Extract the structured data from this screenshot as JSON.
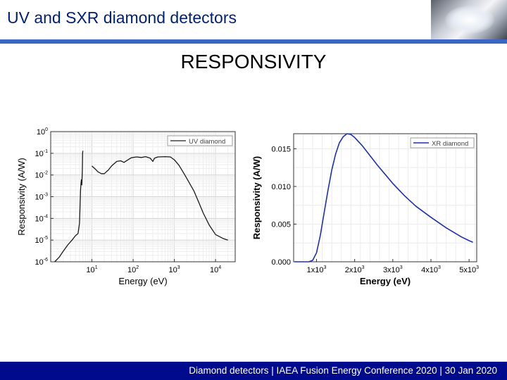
{
  "header": {
    "title": "UV and SXR diamond detectors"
  },
  "subtitle": "RESPONSIVITY",
  "footer": {
    "text": "Diamond detectors | IAEA Fusion Energy Conference 2020 | 30 Jan 2020"
  },
  "colors": {
    "title": "#001f7a",
    "title_bar": "#3a66c4",
    "footer_bar": "#000a8c",
    "uv_line": "#1a1a1a",
    "xr_line": "#1f2fb0"
  },
  "chart_data": [
    {
      "type": "line",
      "xscale": "log",
      "yscale": "log",
      "xlabel": "Energy (eV)",
      "ylabel": "Responsivity (A/W)",
      "xlim": [
        1,
        30000
      ],
      "ylim": [
        1e-06,
        1
      ],
      "xticks": [
        {
          "v": 10,
          "label": "10",
          "exp": "1"
        },
        {
          "v": 100,
          "label": "10",
          "exp": "2"
        },
        {
          "v": 1000,
          "label": "10",
          "exp": "3"
        },
        {
          "v": 10000,
          "label": "10",
          "exp": "4"
        }
      ],
      "yticks": [
        {
          "v": 1,
          "label": "10",
          "exp": "0"
        },
        {
          "v": 0.1,
          "label": "10",
          "exp": "-1"
        },
        {
          "v": 0.01,
          "label": "10",
          "exp": "-2"
        },
        {
          "v": 0.001,
          "label": "10",
          "exp": "-3"
        },
        {
          "v": 0.0001,
          "label": "10",
          "exp": "-4"
        },
        {
          "v": 1e-05,
          "label": "10",
          "exp": "-5"
        },
        {
          "v": 1e-06,
          "label": "10",
          "exp": "-6"
        }
      ],
      "grid": true,
      "legend_position": "top-right",
      "series": [
        {
          "name": "UV diamond",
          "segments": [
            [
              [
                1.25,
                1e-06
              ],
              [
                1.6,
                1.6e-06
              ],
              [
                2.0,
                3e-06
              ],
              [
                2.6,
                6e-06
              ],
              [
                3.3,
                1e-05
              ],
              [
                4.0,
                1.6e-05
              ],
              [
                4.6,
                2e-05
              ],
              [
                5.0,
                6e-05
              ],
              [
                5.3,
                0.002
              ],
              [
                5.45,
                0.0045
              ],
              [
                5.55,
                0.006
              ],
              [
                5.7,
                0.0035
              ],
              [
                5.85,
                0.015
              ],
              [
                5.95,
                0.1
              ],
              [
                6.05,
                0.13
              ]
            ],
            [
              [
                10,
                0.026
              ],
              [
                12,
                0.019
              ],
              [
                14,
                0.014
              ],
              [
                17,
                0.0115
              ],
              [
                20,
                0.0115
              ],
              [
                25,
                0.017
              ],
              [
                30,
                0.026
              ],
              [
                40,
                0.042
              ],
              [
                50,
                0.045
              ],
              [
                60,
                0.038
              ],
              [
                70,
                0.046
              ],
              [
                90,
                0.062
              ],
              [
                120,
                0.068
              ],
              [
                160,
                0.064
              ],
              [
                200,
                0.07
              ],
              [
                260,
                0.06
              ],
              [
                300,
                0.042
              ],
              [
                330,
                0.06
              ],
              [
                400,
                0.068
              ],
              [
                600,
                0.07
              ],
              [
                800,
                0.068
              ],
              [
                1000,
                0.05
              ],
              [
                1300,
                0.028
              ],
              [
                1700,
                0.012
              ],
              [
                2000,
                0.007
              ],
              [
                3000,
                0.0018
              ],
              [
                4000,
                0.0005
              ],
              [
                5000,
                0.00018
              ],
              [
                7000,
                5e-05
              ],
              [
                10000,
                1.8e-05
              ],
              [
                15000,
                1.2e-05
              ],
              [
                20000,
                1e-05
              ]
            ]
          ]
        }
      ]
    },
    {
      "type": "line",
      "xlabel": "Energy (eV)",
      "ylabel": "Responsivity (A/W)",
      "xlim": [
        400,
        5200
      ],
      "ylim": [
        0,
        0.017
      ],
      "xticks": [
        {
          "v": 1000,
          "label": "1x10",
          "exp": "3"
        },
        {
          "v": 2000,
          "label": "2x10",
          "exp": "3"
        },
        {
          "v": 3000,
          "label": "3x10",
          "exp": "3"
        },
        {
          "v": 4000,
          "label": "4x10",
          "exp": "3"
        },
        {
          "v": 5000,
          "label": "5x10",
          "exp": "3"
        }
      ],
      "yticks": [
        {
          "v": 0,
          "label": "0.000"
        },
        {
          "v": 0.005,
          "label": "0.005"
        },
        {
          "v": 0.01,
          "label": "0.010"
        },
        {
          "v": 0.015,
          "label": "0.015"
        }
      ],
      "grid": true,
      "legend_position": "top-right",
      "series": [
        {
          "name": "XR diamond",
          "points": [
            [
              420,
              0.0
            ],
            [
              800,
              0.0
            ],
            [
              900,
              0.0002
            ],
            [
              1000,
              0.0012
            ],
            [
              1100,
              0.0035
            ],
            [
              1200,
              0.0065
            ],
            [
              1300,
              0.0095
            ],
            [
              1400,
              0.0122
            ],
            [
              1500,
              0.0143
            ],
            [
              1600,
              0.0158
            ],
            [
              1700,
              0.0166
            ],
            [
              1800,
              0.017
            ],
            [
              1900,
              0.0169
            ],
            [
              2000,
              0.0165
            ],
            [
              2200,
              0.0154
            ],
            [
              2400,
              0.0141
            ],
            [
              2600,
              0.0128
            ],
            [
              2800,
              0.0116
            ],
            [
              3000,
              0.0104
            ],
            [
              3300,
              0.0088
            ],
            [
              3600,
              0.0074
            ],
            [
              4000,
              0.0059
            ],
            [
              4400,
              0.0045
            ],
            [
              4800,
              0.0033
            ],
            [
              5000,
              0.0028
            ],
            [
              5100,
              0.0026
            ]
          ]
        }
      ]
    }
  ]
}
